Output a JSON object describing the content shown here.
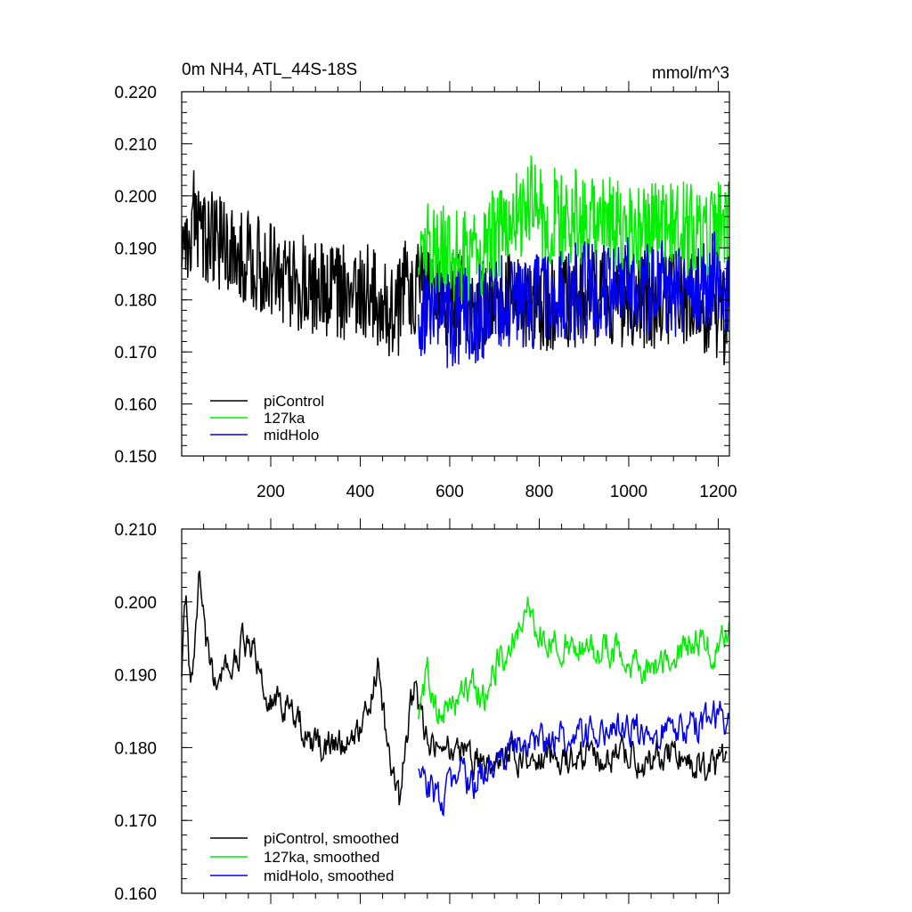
{
  "header": {
    "title": "0m NH4, ATL_44S-18S",
    "units": "mmol/m^3"
  },
  "colors": {
    "piControl": "#000000",
    "127ka": "#00ee00",
    "midHolo": "#0000ee"
  },
  "chart_data": [
    {
      "type": "line",
      "title": "0m NH4, ATL_44S-18S",
      "units": "mmol/m^3",
      "xlim": [
        1,
        1225
      ],
      "ylim": [
        0.15,
        0.22
      ],
      "xticks": [
        200,
        400,
        600,
        800,
        1000,
        1200
      ],
      "xtick_labels": [
        "200",
        "400",
        "600",
        "800",
        "1000",
        "1200"
      ],
      "yticks": [
        0.15,
        0.16,
        0.17,
        0.18,
        0.19,
        0.2,
        0.21,
        0.22
      ],
      "ytick_labels": [
        "0.150",
        "0.160",
        "0.170",
        "0.180",
        "0.190",
        "0.200",
        "0.210",
        "0.220"
      ],
      "legend_position": "bottom-left",
      "series": [
        {
          "name": "piControl",
          "color": "#000000",
          "x": [
            1,
            25,
            50,
            75,
            100,
            150,
            200,
            250,
            300,
            350,
            400,
            450,
            480,
            500,
            550,
            600,
            650,
            700,
            750,
            800,
            850,
            900,
            950,
            1000,
            1050,
            1100,
            1150,
            1200,
            1220
          ],
          "y": [
            0.189,
            0.196,
            0.193,
            0.191,
            0.19,
            0.188,
            0.186,
            0.184,
            0.182,
            0.181,
            0.182,
            0.18,
            0.176,
            0.183,
            0.182,
            0.18,
            0.179,
            0.18,
            0.18,
            0.179,
            0.18,
            0.18,
            0.18,
            0.18,
            0.18,
            0.18,
            0.18,
            0.178,
            0.176
          ]
        },
        {
          "name": "127ka",
          "color": "#00ee00",
          "x": [
            530,
            550,
            600,
            650,
            700,
            750,
            780,
            800,
            850,
            900,
            950,
            1000,
            1050,
            1100,
            1150,
            1200,
            1225
          ],
          "y": [
            0.188,
            0.19,
            0.189,
            0.188,
            0.192,
            0.196,
            0.199,
            0.196,
            0.196,
            0.196,
            0.195,
            0.193,
            0.193,
            0.194,
            0.193,
            0.194,
            0.196
          ]
        },
        {
          "name": "midHolo",
          "color": "#0000ee",
          "x": [
            530,
            550,
            600,
            650,
            700,
            750,
            800,
            850,
            900,
            950,
            1000,
            1050,
            1100,
            1150,
            1200,
            1225
          ],
          "y": [
            0.178,
            0.177,
            0.176,
            0.177,
            0.179,
            0.18,
            0.18,
            0.181,
            0.182,
            0.181,
            0.183,
            0.182,
            0.182,
            0.183,
            0.184,
            0.183
          ]
        }
      ]
    },
    {
      "type": "line",
      "xlim": [
        1,
        1225
      ],
      "ylim": [
        0.16,
        0.21
      ],
      "yticks": [
        0.16,
        0.17,
        0.18,
        0.19,
        0.2,
        0.21
      ],
      "ytick_labels": [
        "0.160",
        "0.170",
        "0.180",
        "0.190",
        "0.200",
        "0.210"
      ],
      "xticks": [
        200,
        400,
        600,
        800,
        1000,
        1200
      ],
      "legend_position": "bottom-left",
      "series": [
        {
          "name": "piControl, smoothed",
          "color": "#000000",
          "x": [
            1,
            10,
            20,
            30,
            40,
            60,
            80,
            100,
            120,
            140,
            160,
            180,
            200,
            250,
            300,
            350,
            400,
            440,
            450,
            470,
            490,
            500,
            520,
            550,
            600,
            650,
            700,
            750,
            800,
            850,
            900,
            950,
            1000,
            1050,
            1100,
            1150,
            1200,
            1220
          ],
          "y": [
            0.19,
            0.201,
            0.188,
            0.195,
            0.205,
            0.192,
            0.189,
            0.19,
            0.192,
            0.195,
            0.193,
            0.19,
            0.186,
            0.185,
            0.18,
            0.181,
            0.183,
            0.191,
            0.185,
            0.176,
            0.172,
            0.18,
            0.188,
            0.181,
            0.18,
            0.178,
            0.179,
            0.179,
            0.179,
            0.178,
            0.179,
            0.179,
            0.179,
            0.178,
            0.179,
            0.178,
            0.177,
            0.179
          ]
        },
        {
          "name": "127ka, smoothed",
          "color": "#00ee00",
          "x": [
            530,
            550,
            570,
            600,
            620,
            650,
            680,
            700,
            720,
            740,
            760,
            780,
            800,
            850,
            900,
            950,
            1000,
            1050,
            1100,
            1150,
            1200,
            1225
          ],
          "y": [
            0.184,
            0.191,
            0.186,
            0.185,
            0.186,
            0.189,
            0.187,
            0.191,
            0.193,
            0.195,
            0.197,
            0.2,
            0.195,
            0.194,
            0.194,
            0.194,
            0.192,
            0.191,
            0.193,
            0.195,
            0.193,
            0.196
          ]
        },
        {
          "name": "midHolo, smoothed",
          "color": "#0000ee",
          "x": [
            530,
            550,
            580,
            600,
            620,
            650,
            680,
            700,
            720,
            750,
            800,
            850,
            900,
            950,
            1000,
            1050,
            1100,
            1150,
            1200,
            1225
          ],
          "y": [
            0.177,
            0.175,
            0.172,
            0.175,
            0.176,
            0.175,
            0.177,
            0.178,
            0.179,
            0.18,
            0.18,
            0.182,
            0.182,
            0.181,
            0.183,
            0.182,
            0.182,
            0.183,
            0.184,
            0.184
          ]
        }
      ]
    }
  ]
}
